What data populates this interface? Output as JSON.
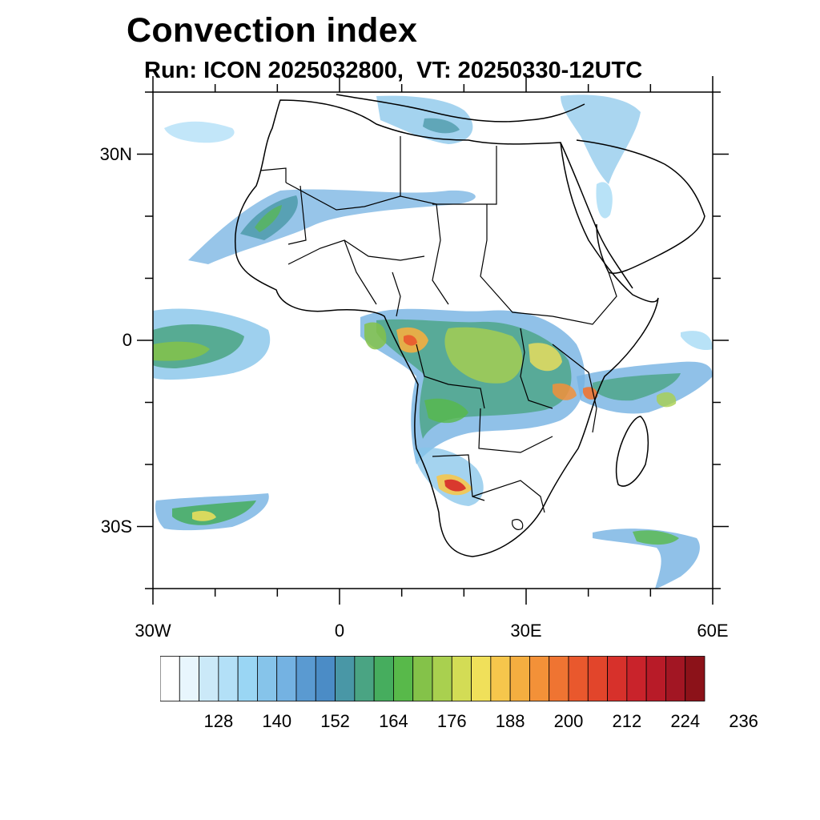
{
  "title": "Convection index",
  "subtitle": "Run: ICON 2025032800,  VT: 20250330-12UTC",
  "map": {
    "extent": {
      "lon_min": -30,
      "lon_max": 60,
      "lat_min": -40,
      "lat_max": 40
    },
    "lat_ticks": [
      {
        "lat": 30,
        "label": "30N"
      },
      {
        "lat": 0,
        "label": "0"
      },
      {
        "lat": -30,
        "label": "30S"
      }
    ],
    "lon_ticks": [
      {
        "lon": -30,
        "label": "30W"
      },
      {
        "lon": 0,
        "label": "0"
      },
      {
        "lon": 30,
        "label": "30E"
      },
      {
        "lon": 60,
        "label": "60E"
      }
    ]
  },
  "colorbar": {
    "colors": [
      "#ffffff",
      "#e8f6fd",
      "#cbe9f8",
      "#b3e0f7",
      "#9ad6f4",
      "#86c4ea",
      "#74b2e2",
      "#5a9ad1",
      "#4b8cc6",
      "#4997a6",
      "#4aa483",
      "#46ad5e",
      "#58b94a",
      "#84c249",
      "#a9d04f",
      "#d3dc55",
      "#f0e05a",
      "#f6c64c",
      "#f4ae40",
      "#f39138",
      "#ef7432",
      "#e9582d",
      "#e2452b",
      "#d7312b",
      "#c9232b",
      "#b81b28",
      "#a21623",
      "#8c1219"
    ],
    "labels": [
      "128",
      "140",
      "152",
      "164",
      "176",
      "188",
      "200",
      "212",
      "224",
      "236"
    ]
  }
}
